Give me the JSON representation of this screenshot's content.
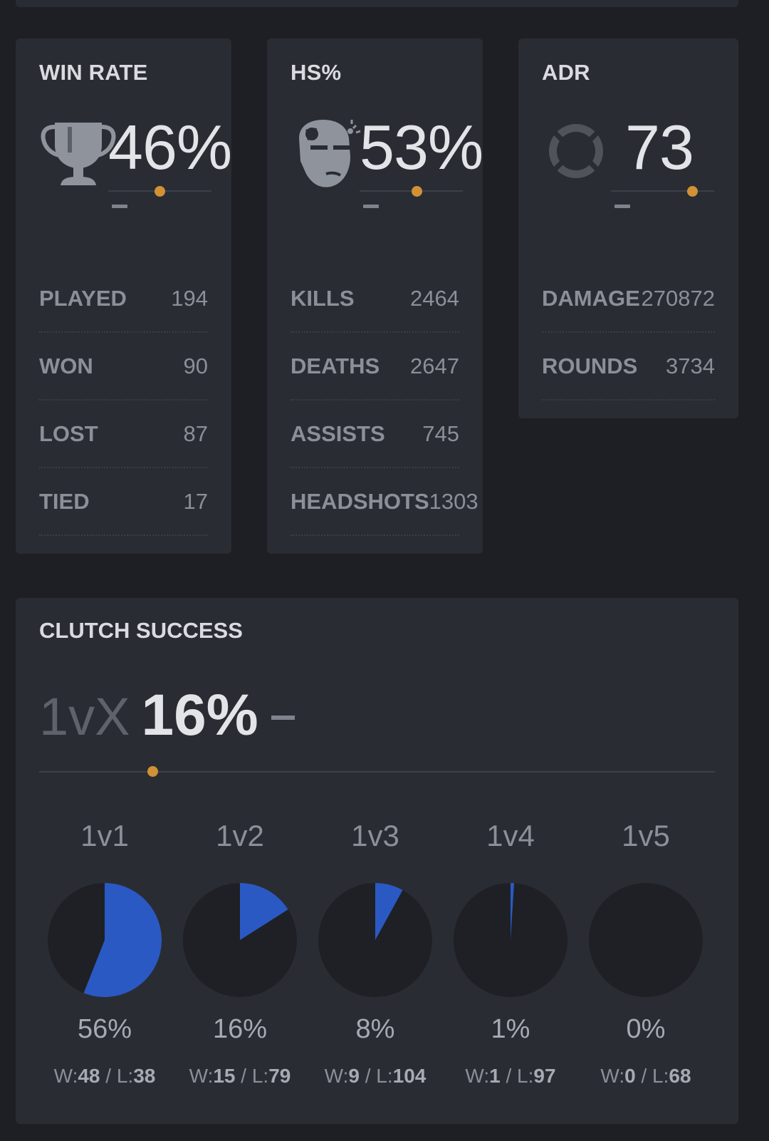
{
  "cards": {
    "win_rate": {
      "title": "WIN RATE",
      "value": "46%",
      "icon": "trophy-icon",
      "dash": "-",
      "marker": 0.5,
      "rows": [
        {
          "label": "PLAYED",
          "value": "194"
        },
        {
          "label": "WON",
          "value": "90"
        },
        {
          "label": "LOST",
          "value": "87"
        },
        {
          "label": "TIED",
          "value": "17"
        }
      ]
    },
    "hs": {
      "title": "HS%",
      "value": "53%",
      "icon": "headshot-icon",
      "dash": "-",
      "marker": 0.58,
      "rows": [
        {
          "label": "KILLS",
          "value": "2464"
        },
        {
          "label": "DEATHS",
          "value": "2647"
        },
        {
          "label": "ASSISTS",
          "value": "745"
        },
        {
          "label": "HEADSHOTS",
          "value": "1303"
        }
      ]
    },
    "adr": {
      "title": "ADR",
      "value": "73",
      "icon": "damage-ring-icon",
      "dash": "-",
      "marker": 0.78,
      "rows": [
        {
          "label": "DAMAGE",
          "value": "270872"
        },
        {
          "label": "ROUNDS",
          "value": "3734"
        }
      ]
    }
  },
  "clutch": {
    "title": "CLUTCH SUCCESS",
    "prefix": "1vX",
    "value": "16%",
    "dash": "-",
    "marker": 0.16,
    "modes": [
      {
        "label": "1v1",
        "pct": "56%",
        "fraction": 0.56,
        "w_prefix": "W:",
        "w": "48",
        "sep": " / L:",
        "l": "38"
      },
      {
        "label": "1v2",
        "pct": "16%",
        "fraction": 0.16,
        "w_prefix": "W:",
        "w": "15",
        "sep": " / L:",
        "l": "79"
      },
      {
        "label": "1v3",
        "pct": "8%",
        "fraction": 0.08,
        "w_prefix": "W:",
        "w": "9",
        "sep": " / L:",
        "l": "104"
      },
      {
        "label": "1v4",
        "pct": "1%",
        "fraction": 0.01,
        "w_prefix": "W:",
        "w": "1",
        "sep": " / L:",
        "l": "97"
      },
      {
        "label": "1v5",
        "pct": "0%",
        "fraction": 0.0,
        "w_prefix": "W:",
        "w": "0",
        "sep": " / L:",
        "l": "68"
      }
    ]
  },
  "colors": {
    "accent_marker": "#d09235",
    "pie_fill": "#2b59c3",
    "pie_bg": "#1e2025"
  }
}
